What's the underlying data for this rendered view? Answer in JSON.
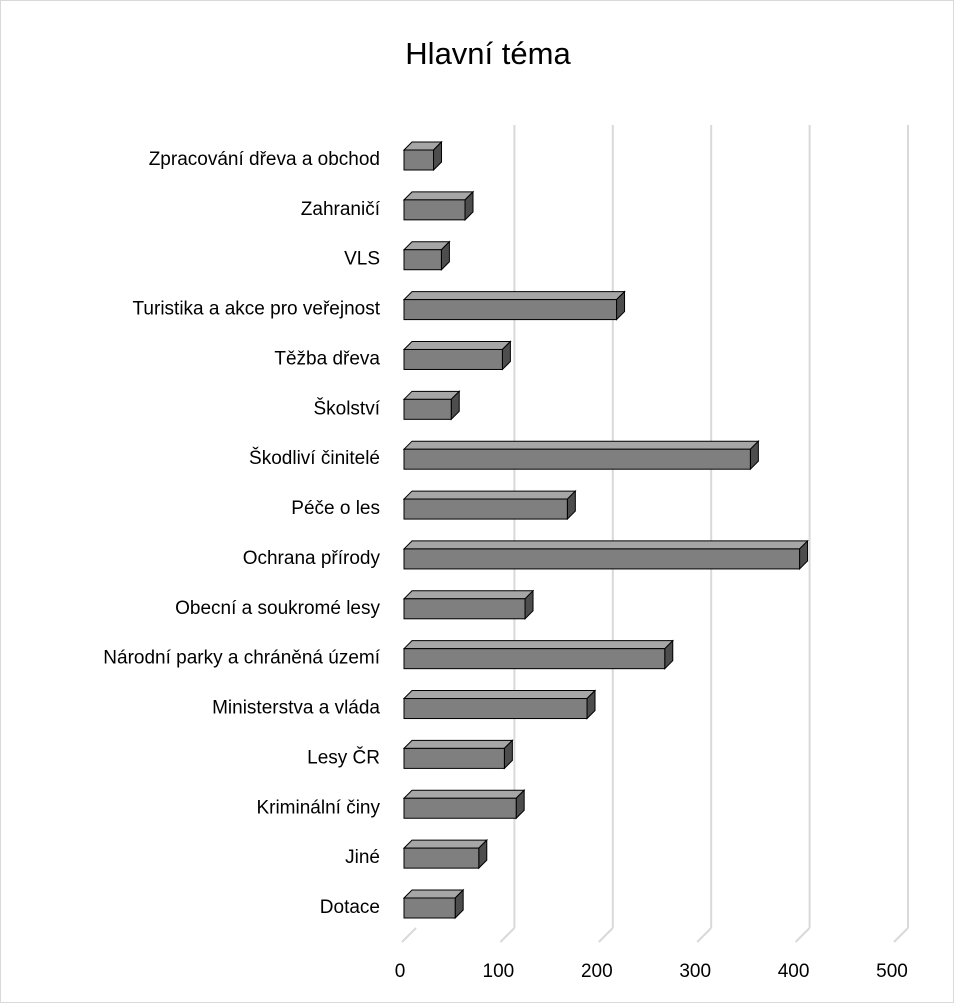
{
  "chart_data": {
    "type": "bar3d_horizontal",
    "title": "Hlavní téma",
    "categories": [
      "Zpracování dřeva a obchod",
      "Zahraničí",
      "VLS",
      "Turistika a akce pro veřejnost",
      "Těžba dřeva",
      "Školství",
      "Škodliví činitelé",
      "Péče o les",
      "Ochrana přírody",
      "Obecní a soukromé lesy",
      "Národní parky a chráněná území",
      "Ministerstva a vláda",
      "Lesy ČR",
      "Kriminální činy",
      "Jiné",
      "Dotace"
    ],
    "values": [
      30,
      62,
      38,
      216,
      100,
      48,
      352,
      166,
      402,
      123,
      265,
      186,
      102,
      114,
      76,
      52
    ],
    "color": "#7f7f7f",
    "xlim": [
      0,
      500
    ],
    "xticks": [
      0,
      100,
      200,
      300,
      400,
      500
    ],
    "grid": true
  }
}
